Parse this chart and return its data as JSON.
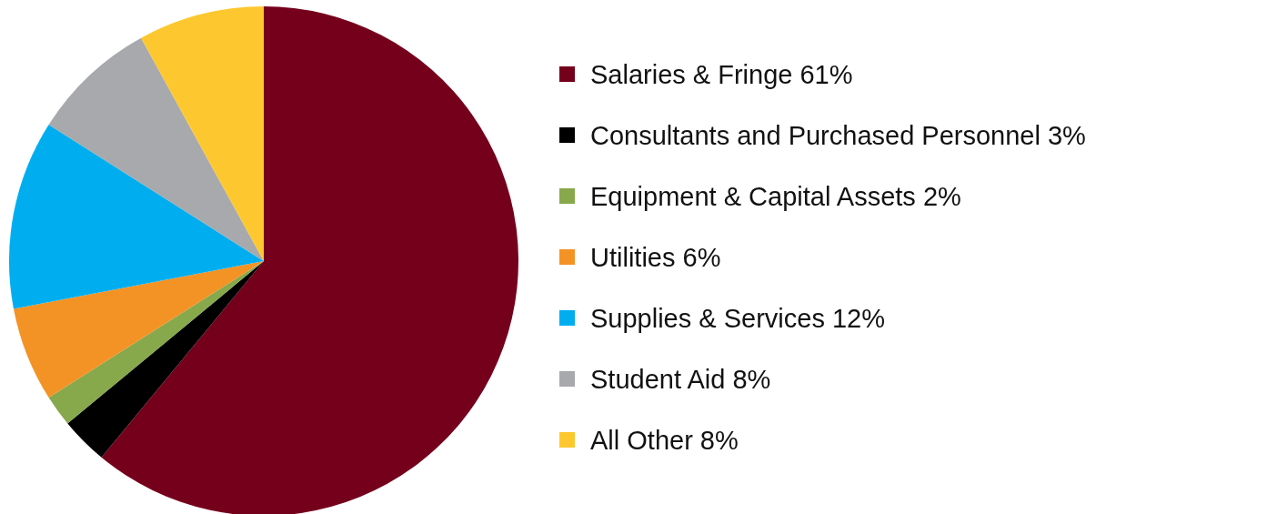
{
  "chart_data": {
    "type": "pie",
    "categories": [
      "Salaries & Fringe 61%",
      "Consultants and Purchased Personnel 3%",
      "Equipment & Capital Assets 2%",
      "Utilities 6%",
      "Supplies & Services 12%",
      "Student Aid 8%",
      "All Other 8%"
    ],
    "values": [
      61,
      3,
      2,
      6,
      12,
      8,
      8
    ],
    "colors": [
      "#75001c",
      "#000000",
      "#87a84b",
      "#f39325",
      "#00aeef",
      "#a7a9ac",
      "#fdc82f"
    ],
    "legend": "right"
  }
}
